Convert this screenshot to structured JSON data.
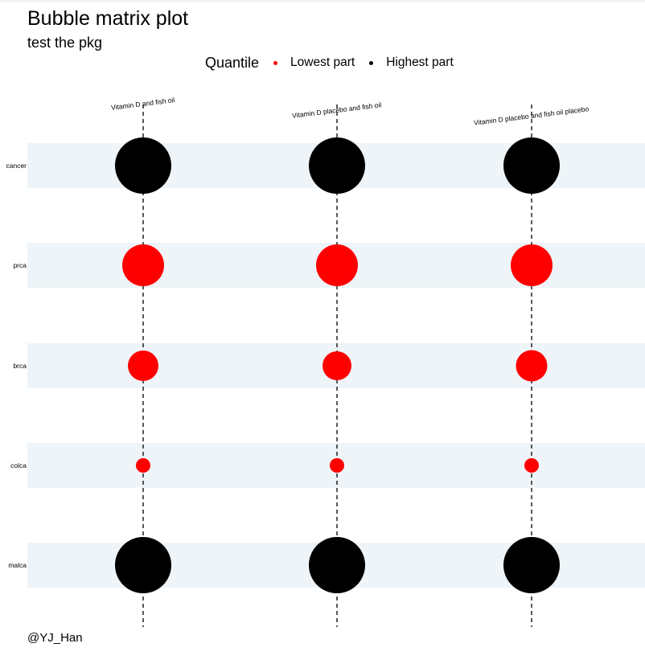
{
  "chart_data": {
    "type": "scatter",
    "title": "Bubble matrix plot",
    "subtitle": "test the pkg",
    "caption": "@YJ_Han",
    "xlabel": "",
    "ylabel": "",
    "legend": {
      "title": "Quantile",
      "placement": "top",
      "entries": [
        {
          "label": "Lowest part",
          "color": "#ff0000"
        },
        {
          "label": "Highest part",
          "color": "#000000"
        }
      ]
    },
    "categories": [
      "Vitamin D and fish oil",
      "Vitamin D placebo and fish oil",
      "Vitamin D placebo and fish oil placebo"
    ],
    "rows": [
      "cancer",
      "prca",
      "brca",
      "colca",
      "malca"
    ],
    "series": [
      {
        "row": "cancer",
        "quantile": "Highest part",
        "size": [
          70,
          70,
          70
        ]
      },
      {
        "row": "prca",
        "quantile": "Lowest part",
        "size": [
          52,
          52,
          52
        ]
      },
      {
        "row": "brca",
        "quantile": "Lowest part",
        "size": [
          38,
          36,
          39
        ]
      },
      {
        "row": "colca",
        "quantile": "Lowest part",
        "size": [
          18,
          18,
          18
        ]
      },
      {
        "row": "malca",
        "quantile": "Highest part",
        "size": [
          70,
          70,
          70
        ]
      }
    ],
    "grid": {
      "vertical": "dashed",
      "row_bands": true
    },
    "colors": {
      "band": "#eef4f8",
      "low": "#ff0000",
      "high": "#000000"
    }
  }
}
